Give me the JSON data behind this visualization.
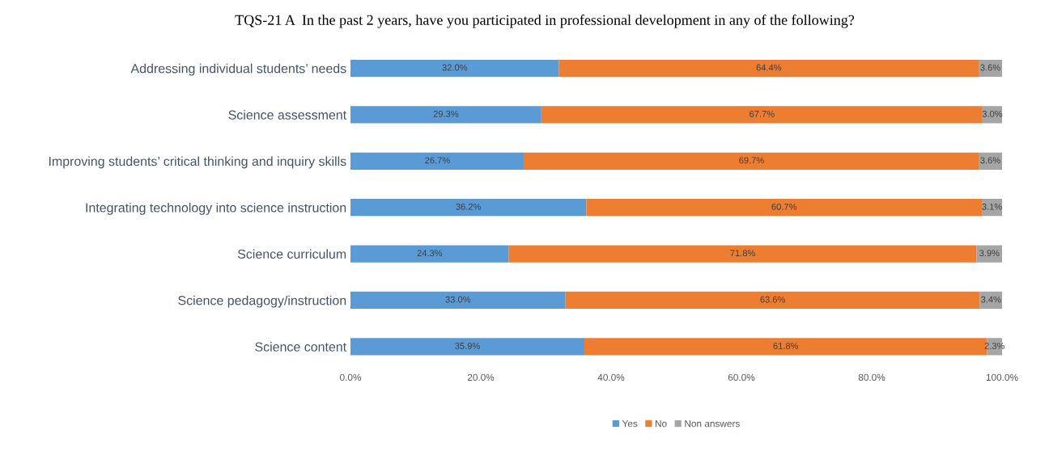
{
  "chart_data": {
    "type": "bar",
    "orientation": "horizontal",
    "stacked": true,
    "title": "TQS-21 A  In the past 2 years, have you participated in professional development in any of the following?",
    "categories": [
      "Addressing individual students’ needs",
      "Science assessment",
      "Improving students’ critical thinking and inquiry skills",
      "Integrating technology into science instruction",
      "Science curriculum",
      "Science pedagogy/instruction",
      "Science content"
    ],
    "series": [
      {
        "name": "Yes",
        "color": "#5b9bd5",
        "values": [
          32.0,
          29.3,
          26.7,
          36.2,
          24.3,
          33.0,
          35.9
        ],
        "value_labels": [
          "32.0%",
          "29.3%",
          "26.7%",
          "36.2%",
          "24.3%",
          "33.0%",
          "35.9%"
        ]
      },
      {
        "name": "No",
        "color": "#ed7d31",
        "values": [
          64.4,
          67.7,
          69.7,
          60.7,
          71.8,
          63.6,
          61.8
        ],
        "value_labels": [
          "64.4%",
          "67.7%",
          "69.7%",
          "60.7%",
          "71.8%",
          "63.6%",
          "61.8%"
        ]
      },
      {
        "name": "Non answers",
        "color": "#a5a5a5",
        "values": [
          3.6,
          3.0,
          3.6,
          3.1,
          3.9,
          3.4,
          2.3
        ],
        "value_labels": [
          "3.6%",
          "3.0%",
          "3.6%",
          "3.1%",
          "3.9%",
          "3.4%",
          "2.3%"
        ]
      }
    ],
    "xlim": [
      0,
      100
    ],
    "xticks": [
      {
        "value": 0,
        "label": "0.0%"
      },
      {
        "value": 20,
        "label": "20.0%"
      },
      {
        "value": 40,
        "label": "40.0%"
      },
      {
        "value": 60,
        "label": "60.0%"
      },
      {
        "value": 80,
        "label": "80.0%"
      },
      {
        "value": 100,
        "label": "100.0%"
      }
    ],
    "grid": false,
    "legend": "bottom"
  }
}
